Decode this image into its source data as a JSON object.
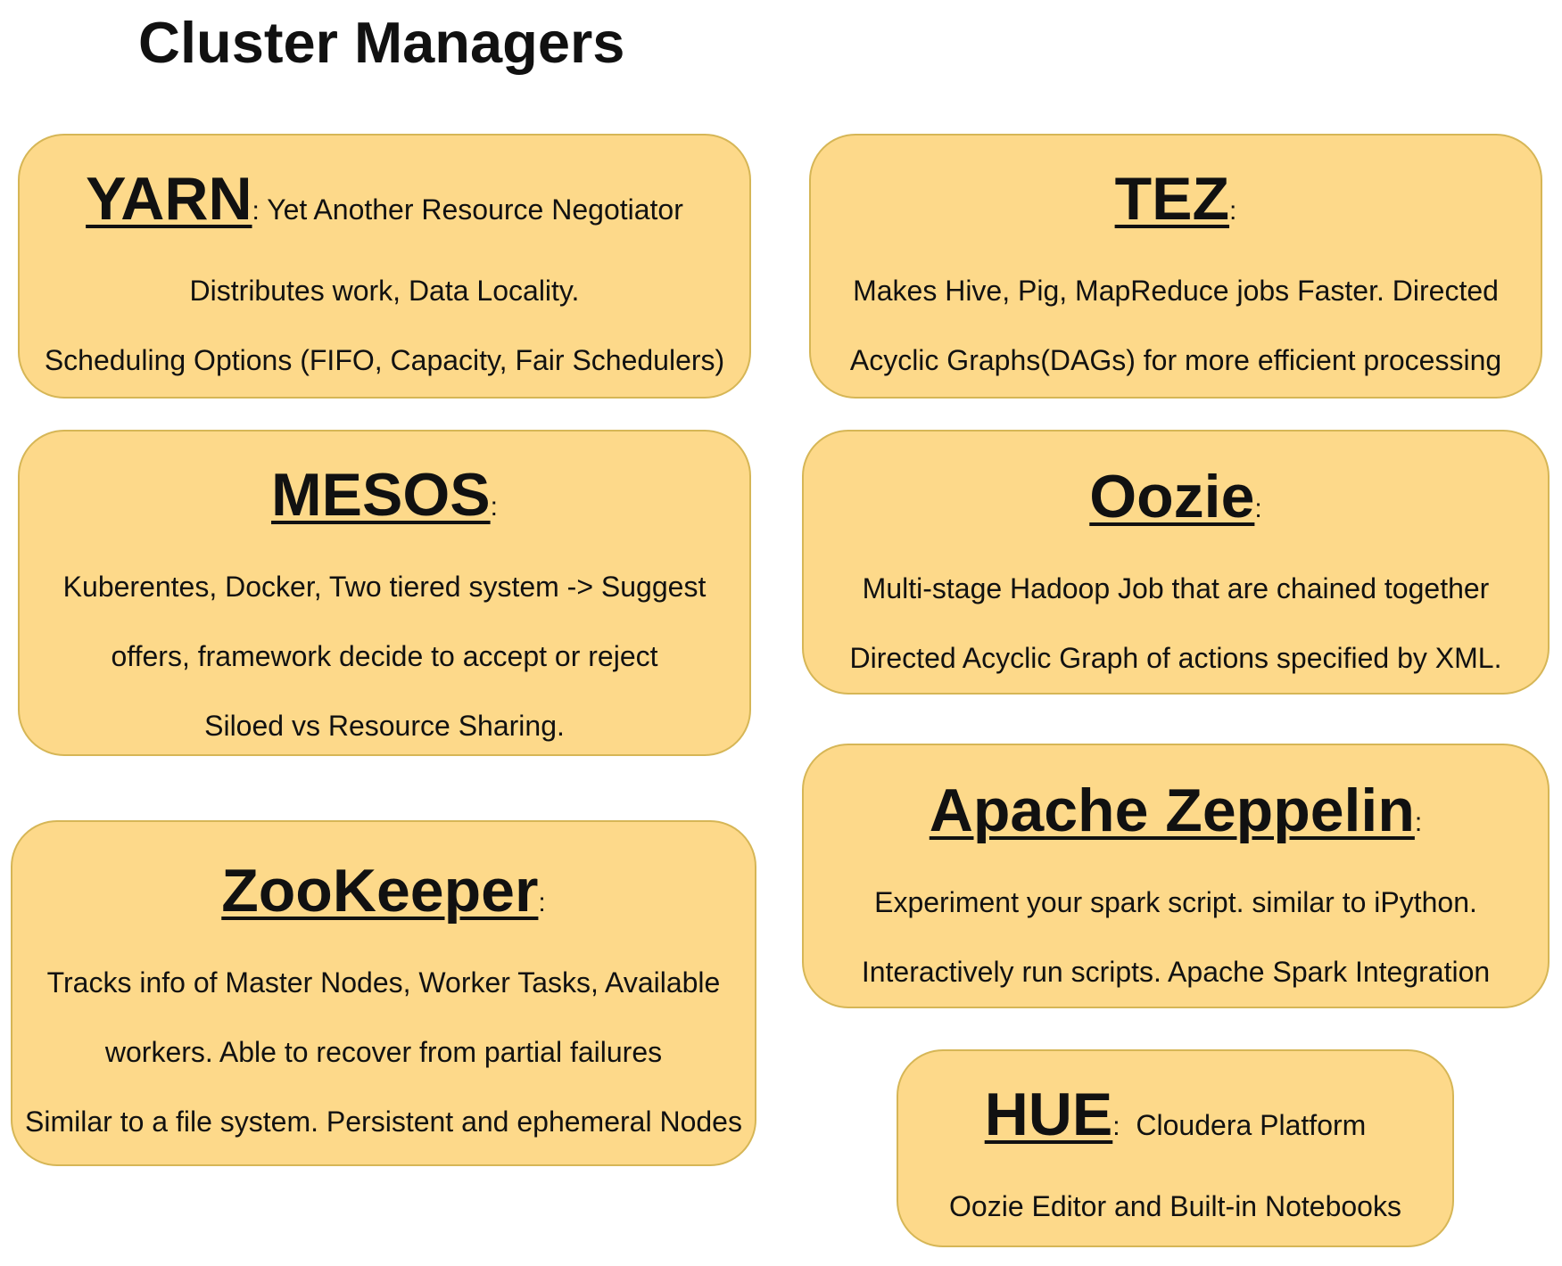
{
  "title": "Cluster Managers",
  "colors": {
    "card_fill": "#FDD98A",
    "card_border": "#D6B656",
    "text": "#111111"
  },
  "cards": {
    "yarn": {
      "name": "YARN",
      "colon": ":",
      "subtitle": " Yet Another Resource Negotiator",
      "lines": [
        "Distributes work, Data Locality.",
        "Scheduling Options (FIFO, Capacity, Fair Schedulers)"
      ]
    },
    "tez": {
      "name": "TEZ",
      "colon": ":",
      "subtitle": "",
      "lines": [
        "Makes Hive, Pig, MapReduce jobs Faster. Directed",
        "Acyclic Graphs(DAGs) for more efficient processing"
      ]
    },
    "mesos": {
      "name": "MESOS",
      "colon": ":",
      "subtitle": "",
      "lines": [
        "Kuberentes, Docker, Two tiered system -> Suggest",
        "offers, framework decide to accept or reject",
        "Siloed vs Resource Sharing."
      ]
    },
    "oozie": {
      "name": "Oozie",
      "colon": ":",
      "subtitle": "",
      "lines": [
        "Multi-stage Hadoop Job that are chained together",
        "Directed Acyclic Graph of actions specified by XML."
      ]
    },
    "zookeeper": {
      "name": "ZooKeeper",
      "colon": ":",
      "subtitle": "",
      "lines": [
        "Tracks info of Master Nodes, Worker Tasks, Available",
        "workers. Able to recover from partial failures",
        "Similar to a file system. Persistent and ephemeral Nodes"
      ]
    },
    "zeppelin": {
      "name": "Apache Zeppelin",
      "colon": ":",
      "subtitle": "",
      "lines": [
        "Experiment your spark script. similar to iPython.",
        "Interactively run scripts. Apache Spark Integration"
      ]
    },
    "hue": {
      "name": "HUE",
      "colon": ":",
      "subtitle": "  Cloudera Platform",
      "lines": [
        "Oozie Editor and Built-in Notebooks"
      ]
    }
  }
}
